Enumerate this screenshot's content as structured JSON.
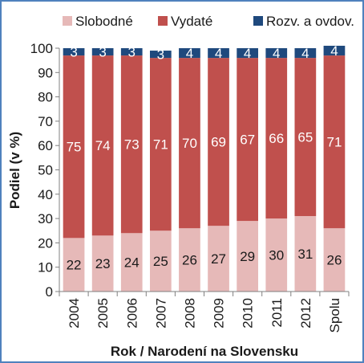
{
  "chart_data": {
    "type": "bar",
    "stacked": true,
    "categories": [
      "2004",
      "2005",
      "2006",
      "2007",
      "2008",
      "2009",
      "2010",
      "2011",
      "2012",
      "Spolu"
    ],
    "series": [
      {
        "name": "Slobodné",
        "color": "#e6b9b8",
        "values": [
          22,
          23,
          24,
          25,
          26,
          27,
          29,
          30,
          31,
          26
        ]
      },
      {
        "name": "Vydaté",
        "color": "#c0504d",
        "values": [
          75,
          74,
          73,
          71,
          70,
          69,
          67,
          66,
          65,
          71
        ]
      },
      {
        "name": "Rozv. a ovdov.",
        "color": "#1f497d",
        "values": [
          3,
          3,
          3,
          3,
          4,
          4,
          4,
          4,
          4,
          4
        ]
      }
    ],
    "xlabel": "Rok / Narodení na Slovensku",
    "ylabel": "Podiel (v %)",
    "ylim": [
      0,
      100
    ],
    "yticks": [
      0,
      10,
      20,
      30,
      40,
      50,
      60,
      70,
      80,
      90,
      100
    ],
    "legend_position": "top",
    "grid": false
  }
}
